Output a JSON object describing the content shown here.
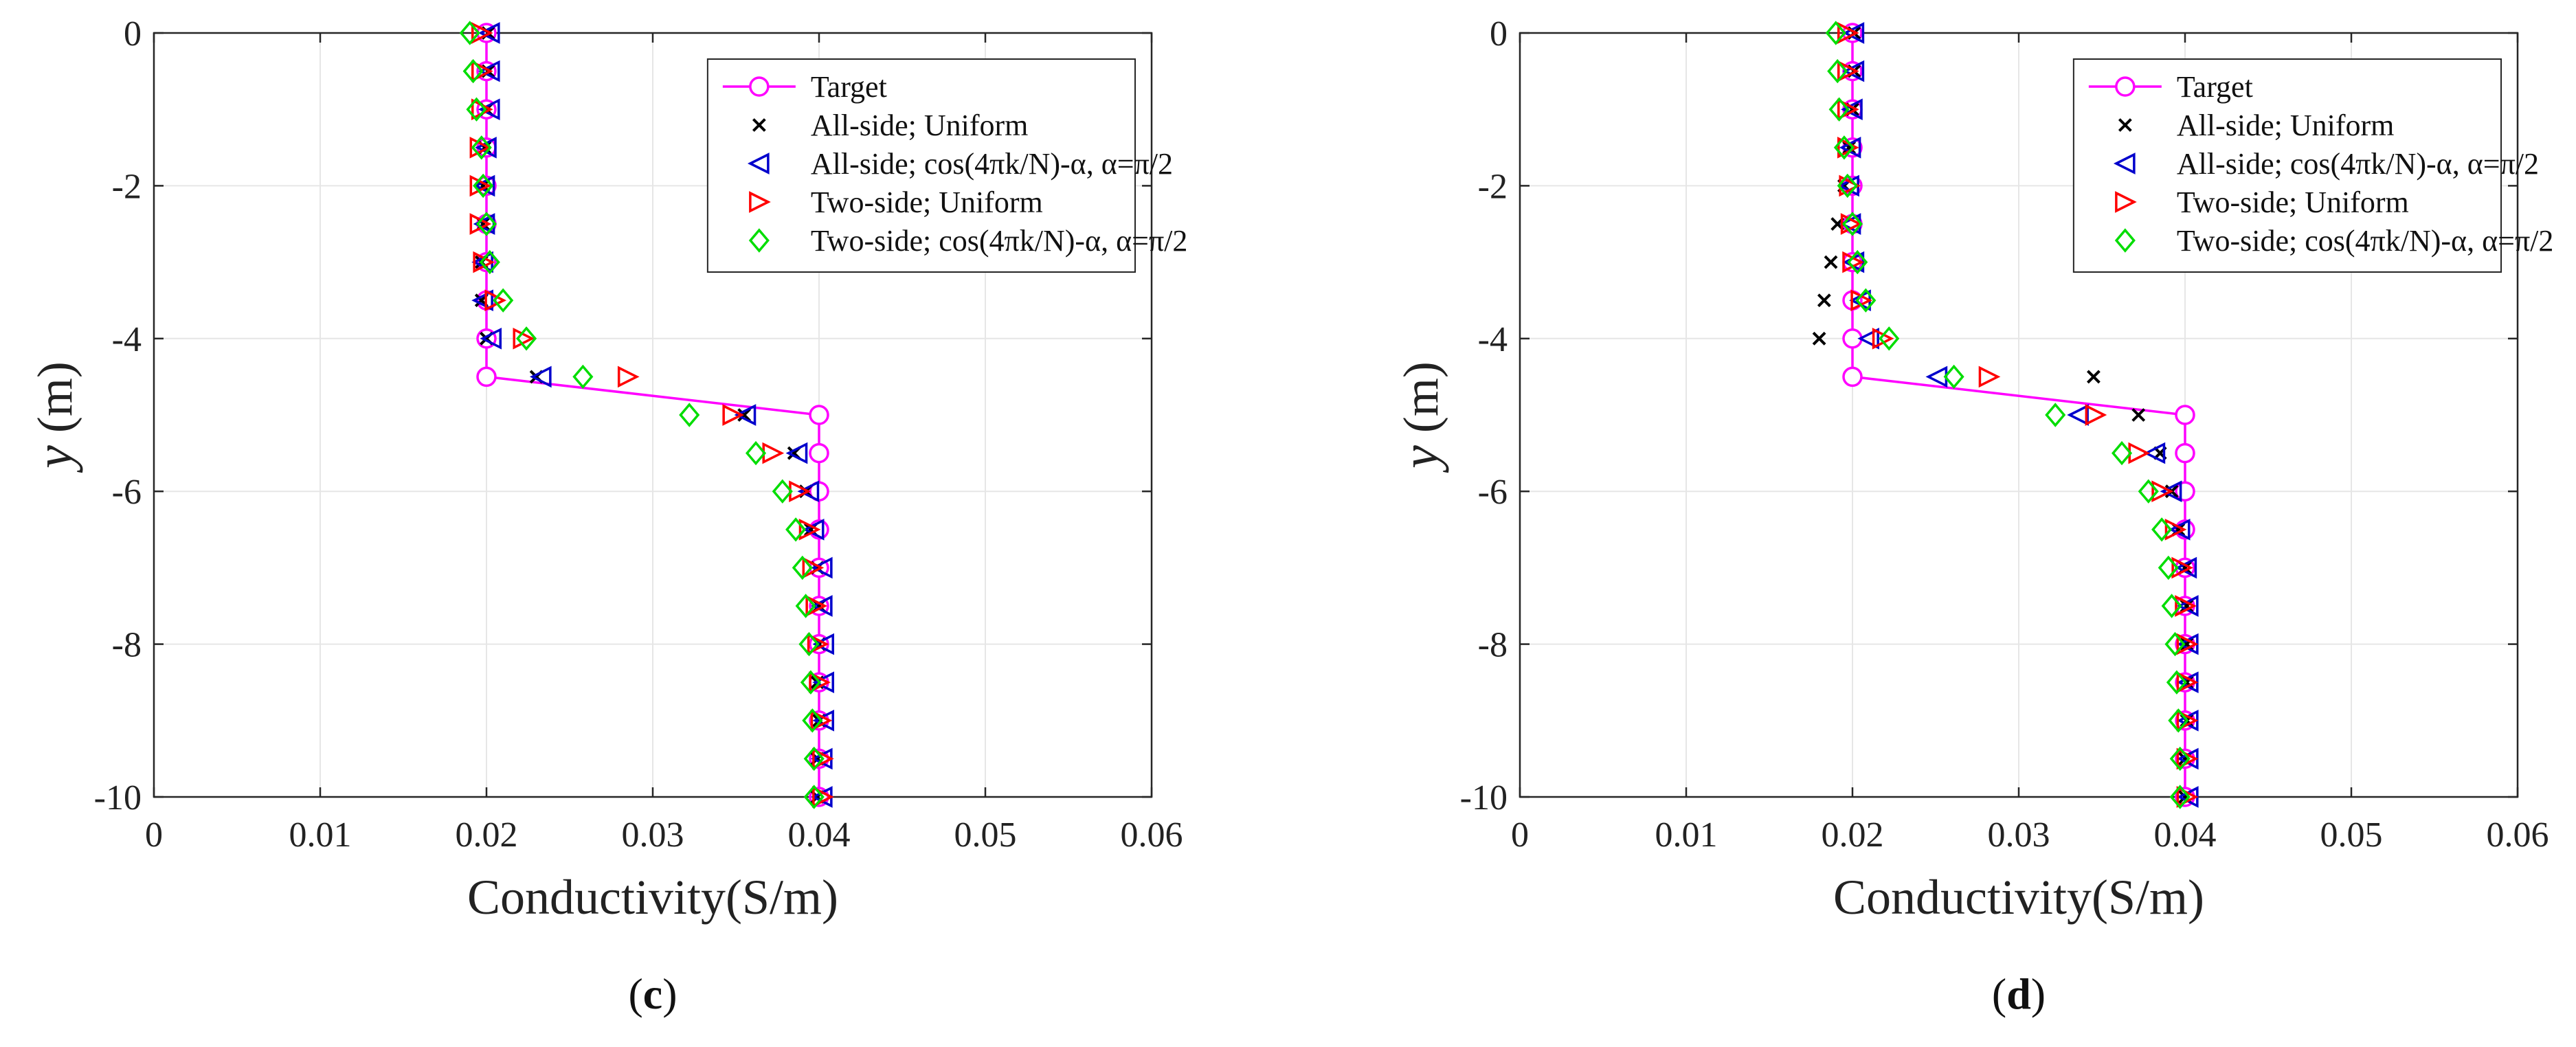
{
  "colors": {
    "target": "#ff00ff",
    "all_uniform": "#000000",
    "all_cos": "#0000cc",
    "two_uniform": "#ff0000",
    "two_cos": "#00dd00",
    "grid": "#e6e6e6",
    "axis": "#262626"
  },
  "legend_labels": {
    "target": "Target",
    "all_uniform": "All-side; Uniform",
    "all_cos": "All-side; cos(4πk/N)-α, α=π/2",
    "two_uniform": "Two-side; Uniform",
    "two_cos": "Two-side; cos(4πk/N)-α, α=π/2"
  },
  "chart_data": [
    {
      "type": "scatter",
      "panel_label": "c",
      "xlabel": "Conductivity(S/m)",
      "ylabel_var": "y",
      "ylabel_unit": " (m)",
      "xlim": [
        0,
        0.06
      ],
      "ylim": [
        -10,
        0
      ],
      "xticks": [
        0,
        0.01,
        0.02,
        0.03,
        0.04,
        0.05,
        0.06
      ],
      "xtick_labels": [
        "0",
        "0.01",
        "0.02",
        "0.03",
        "0.04",
        "0.05",
        "0.06"
      ],
      "yticks": [
        0,
        -2,
        -4,
        -6,
        -8,
        -10
      ],
      "ytick_labels": [
        "0",
        "-2",
        "-4",
        "-6",
        "-8",
        "-10"
      ],
      "grid": true,
      "legend_position": "top-right",
      "series": [
        {
          "name": "Target",
          "key": "target",
          "marker": "circle",
          "line": true,
          "x": [
            0.02,
            0.02,
            0.02,
            0.02,
            0.02,
            0.02,
            0.02,
            0.02,
            0.02,
            0.02,
            0.04,
            0.04,
            0.04,
            0.04,
            0.04,
            0.04,
            0.04,
            0.04,
            0.04,
            0.04,
            0.04
          ],
          "y": [
            0,
            -0.5,
            -1,
            -1.5,
            -2,
            -2.5,
            -3,
            -3.5,
            -4,
            -4.5,
            -5,
            -5.5,
            -6,
            -6.5,
            -7,
            -7.5,
            -8,
            -8.5,
            -9,
            -9.5,
            -10
          ]
        },
        {
          "name": "All-side; Uniform",
          "key": "all_uniform",
          "marker": "x",
          "line": false,
          "x": [
            0.0201,
            0.0201,
            0.02,
            0.0199,
            0.0198,
            0.0198,
            0.0197,
            0.0197,
            0.02,
            0.023,
            0.0355,
            0.0385,
            0.0392,
            0.0395,
            0.0399,
            0.04,
            0.04,
            0.0399,
            0.04,
            0.0399,
            0.0399
          ],
          "y": [
            0,
            -0.5,
            -1,
            -1.5,
            -2,
            -2.5,
            -3,
            -3.5,
            -4,
            -4.5,
            -5,
            -5.5,
            -6,
            -6.5,
            -7,
            -7.5,
            -8,
            -8.5,
            -9,
            -9.5,
            -10
          ]
        },
        {
          "name": "All-side; cos(4πk/N)-α, α=π/2",
          "key": "all_cos",
          "marker": "triangle-left",
          "line": false,
          "x": [
            0.0202,
            0.0202,
            0.0202,
            0.02,
            0.0199,
            0.0199,
            0.0198,
            0.0198,
            0.0203,
            0.0233,
            0.0356,
            0.0387,
            0.0394,
            0.0397,
            0.0402,
            0.0402,
            0.0403,
            0.0403,
            0.0403,
            0.0402,
            0.0402
          ],
          "y": [
            0,
            -0.5,
            -1,
            -1.5,
            -2,
            -2.5,
            -3,
            -3.5,
            -4,
            -4.5,
            -5,
            -5.5,
            -6,
            -6.5,
            -7,
            -7.5,
            -8,
            -8.5,
            -9,
            -9.5,
            -10
          ]
        },
        {
          "name": "Two-side; Uniform",
          "key": "two_uniform",
          "marker": "triangle-right",
          "line": false,
          "x": [
            0.0197,
            0.0197,
            0.0197,
            0.0196,
            0.0196,
            0.0196,
            0.0198,
            0.0205,
            0.0222,
            0.0285,
            0.0348,
            0.0372,
            0.0388,
            0.0394,
            0.0396,
            0.0398,
            0.0399,
            0.04,
            0.0401,
            0.0402,
            0.0402
          ],
          "y": [
            0,
            -0.5,
            -1,
            -1.5,
            -2,
            -2.5,
            -3,
            -3.5,
            -4,
            -4.5,
            -5,
            -5.5,
            -6,
            -6.5,
            -7,
            -7.5,
            -8,
            -8.5,
            -9,
            -9.5,
            -10
          ]
        },
        {
          "name": "Two-side; cos(4πk/N)-α, α=π/2",
          "key": "two_cos",
          "marker": "diamond",
          "line": false,
          "x": [
            0.019,
            0.0192,
            0.0194,
            0.0197,
            0.0198,
            0.02,
            0.0202,
            0.021,
            0.0224,
            0.0258,
            0.0322,
            0.0362,
            0.0378,
            0.0386,
            0.039,
            0.0392,
            0.0394,
            0.0395,
            0.0396,
            0.0397,
            0.0397
          ],
          "y": [
            0,
            -0.5,
            -1,
            -1.5,
            -2,
            -2.5,
            -3,
            -3.5,
            -4,
            -4.5,
            -5,
            -5.5,
            -6,
            -6.5,
            -7,
            -7.5,
            -8,
            -8.5,
            -9,
            -9.5,
            -10
          ]
        }
      ]
    },
    {
      "type": "scatter",
      "panel_label": "d",
      "xlabel": "Conductivity(S/m)",
      "ylabel_var": "y",
      "ylabel_unit": " (m)",
      "xlim": [
        0,
        0.06
      ],
      "ylim": [
        -10,
        0
      ],
      "xticks": [
        0,
        0.01,
        0.02,
        0.03,
        0.04,
        0.05,
        0.06
      ],
      "xtick_labels": [
        "0",
        "0.01",
        "0.02",
        "0.03",
        "0.04",
        "0.05",
        "0.06"
      ],
      "yticks": [
        0,
        -2,
        -4,
        -6,
        -8,
        -10
      ],
      "ytick_labels": [
        "0",
        "-2",
        "-4",
        "-6",
        "-8",
        "-10"
      ],
      "grid": true,
      "legend_position": "top-right",
      "series": [
        {
          "name": "Target",
          "key": "target",
          "marker": "circle",
          "line": true,
          "x": [
            0.02,
            0.02,
            0.02,
            0.02,
            0.02,
            0.02,
            0.02,
            0.02,
            0.02,
            0.02,
            0.04,
            0.04,
            0.04,
            0.04,
            0.04,
            0.04,
            0.04,
            0.04,
            0.04,
            0.04,
            0.04
          ],
          "y": [
            0,
            -0.5,
            -1,
            -1.5,
            -2,
            -2.5,
            -3,
            -3.5,
            -4,
            -4.5,
            -5,
            -5.5,
            -6,
            -6.5,
            -7,
            -7.5,
            -8,
            -8.5,
            -9,
            -9.5,
            -10
          ]
        },
        {
          "name": "All-side; Uniform",
          "key": "all_uniform",
          "marker": "x",
          "line": false,
          "x": [
            0.0201,
            0.0201,
            0.02,
            0.0198,
            0.0195,
            0.0191,
            0.0187,
            0.0183,
            0.018,
            0.0345,
            0.0372,
            0.0385,
            0.0392,
            0.0396,
            0.04,
            0.0401,
            0.0401,
            0.0401,
            0.0401,
            0.04,
            0.04
          ],
          "y": [
            0,
            -0.5,
            -1,
            -1.5,
            -2,
            -2.5,
            -3,
            -3.5,
            -4,
            -4.5,
            -5,
            -5.5,
            -6,
            -6.5,
            -7,
            -7.5,
            -8,
            -8.5,
            -9,
            -9.5,
            -10
          ]
        },
        {
          "name": "All-side; cos(4πk/N)-α, α=π/2",
          "key": "all_cos",
          "marker": "triangle-left",
          "line": false,
          "x": [
            0.0201,
            0.0201,
            0.02,
            0.0199,
            0.0198,
            0.0199,
            0.0201,
            0.0205,
            0.021,
            0.0251,
            0.0336,
            0.0382,
            0.0392,
            0.0397,
            0.0401,
            0.0402,
            0.0402,
            0.0402,
            0.0402,
            0.0402,
            0.0402
          ],
          "y": [
            0,
            -0.5,
            -1,
            -1.5,
            -2,
            -2.5,
            -3,
            -3.5,
            -4,
            -4.5,
            -5,
            -5.5,
            -6,
            -6.5,
            -7,
            -7.5,
            -8,
            -8.5,
            -9,
            -9.5,
            -10
          ]
        },
        {
          "name": "Two-side; Uniform",
          "key": "two_uniform",
          "marker": "triangle-right",
          "line": false,
          "x": [
            0.0197,
            0.0197,
            0.0197,
            0.0197,
            0.0198,
            0.0199,
            0.02,
            0.0205,
            0.0218,
            0.0282,
            0.0346,
            0.0372,
            0.0386,
            0.0394,
            0.0398,
            0.04,
            0.0401,
            0.0401,
            0.0401,
            0.0401,
            0.0401
          ],
          "y": [
            0,
            -0.5,
            -1,
            -1.5,
            -2,
            -2.5,
            -3,
            -3.5,
            -4,
            -4.5,
            -5,
            -5.5,
            -6,
            -6.5,
            -7,
            -7.5,
            -8,
            -8.5,
            -9,
            -9.5,
            -10
          ]
        },
        {
          "name": "Two-side; cos(4πk/N)-α, α=π/2",
          "key": "two_cos",
          "marker": "diamond",
          "line": false,
          "x": [
            0.019,
            0.0191,
            0.0192,
            0.0195,
            0.0197,
            0.02,
            0.0203,
            0.0208,
            0.0222,
            0.0261,
            0.0322,
            0.0362,
            0.0378,
            0.0386,
            0.039,
            0.0392,
            0.0394,
            0.0395,
            0.0396,
            0.0397,
            0.0397
          ],
          "y": [
            0,
            -0.5,
            -1,
            -1.5,
            -2,
            -2.5,
            -3,
            -3.5,
            -4,
            -4.5,
            -5,
            -5.5,
            -6,
            -6.5,
            -7,
            -7.5,
            -8,
            -8.5,
            -9,
            -9.5,
            -10
          ]
        }
      ]
    }
  ]
}
